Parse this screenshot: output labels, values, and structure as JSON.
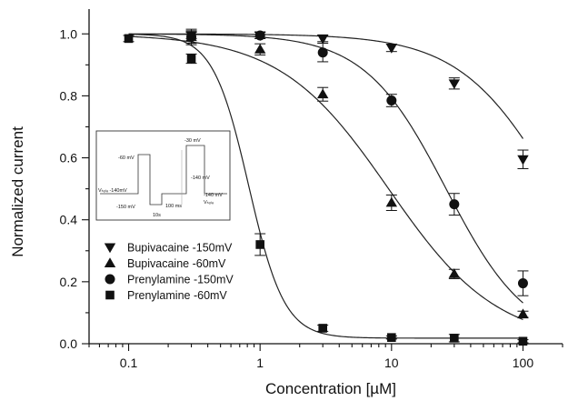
{
  "chart_data": {
    "type": "scatter",
    "title": "",
    "xlabel": "Concentration [µM]",
    "ylabel": "Normalized current",
    "xscale": "log",
    "xlim": [
      0.05,
      200
    ],
    "ylim": [
      0,
      1.08
    ],
    "x_tick_labels": [
      {
        "value": 0.1,
        "label": "0.1"
      },
      {
        "value": 1,
        "label": "1"
      },
      {
        "value": 10,
        "label": "10"
      },
      {
        "value": 100,
        "label": "100"
      }
    ],
    "y_tick_labels": [
      {
        "value": 0.0,
        "label": "0.0"
      },
      {
        "value": 0.2,
        "label": "0.2"
      },
      {
        "value": 0.4,
        "label": "0.4"
      },
      {
        "value": 0.6,
        "label": "0.6"
      },
      {
        "value": 0.8,
        "label": "0.8"
      },
      {
        "value": 1.0,
        "label": "1.0"
      }
    ],
    "grid": false,
    "legend_position": "lower-left",
    "series": [
      {
        "name": "Bupivacaine -150mV",
        "marker": "triangle-down",
        "x": [
          0.3,
          1,
          3,
          10,
          30,
          100
        ],
        "y": [
          0.995,
          0.995,
          0.985,
          0.955,
          0.84,
          0.595
        ],
        "err": [
          0.01,
          0.01,
          0.01,
          0.012,
          0.018,
          0.03
        ],
        "fit": {
          "ic50": 175,
          "hill": 1.2
        }
      },
      {
        "name": "Bupivacaine -60mV",
        "marker": "triangle-up",
        "x": [
          0.3,
          1,
          3,
          10,
          30,
          100
        ],
        "y": [
          0.99,
          0.95,
          0.805,
          0.455,
          0.225,
          0.095
        ],
        "err": [
          0.025,
          0.018,
          0.022,
          0.025,
          0.015,
          0.01
        ],
        "fit": {
          "ic50": 9.5,
          "hill": 1.05
        }
      },
      {
        "name": "Prenylamine -150mV",
        "marker": "circle",
        "x": [
          0.3,
          1,
          3,
          10,
          30,
          100
        ],
        "y": [
          0.99,
          0.995,
          0.94,
          0.785,
          0.45,
          0.195
        ],
        "err": [
          0.02,
          0.01,
          0.03,
          0.02,
          0.035,
          0.04
        ],
        "fit": {
          "ic50": 26,
          "hill": 1.4
        }
      },
      {
        "name": "Prenylamine -60mV",
        "marker": "square",
        "x": [
          0.1,
          0.3,
          1,
          3,
          10,
          30,
          100
        ],
        "y": [
          0.985,
          0.92,
          0.32,
          0.05,
          0.02,
          0.018,
          0.008
        ],
        "err": [
          0.01,
          0.015,
          0.035,
          0.01,
          0.005,
          0.012,
          0.005
        ],
        "fit": {
          "ic50": 0.82,
          "hill": 3.2,
          "bottom": 0.018
        }
      }
    ],
    "inset": {
      "labels": [
        "-60 mV",
        "Vₕₒₗₔ -140mV",
        "-150 mV",
        "-30 mV",
        "-140 mV",
        "-140 mV",
        "10s",
        "100 ms",
        "Vₕₒₗₔ"
      ]
    }
  }
}
